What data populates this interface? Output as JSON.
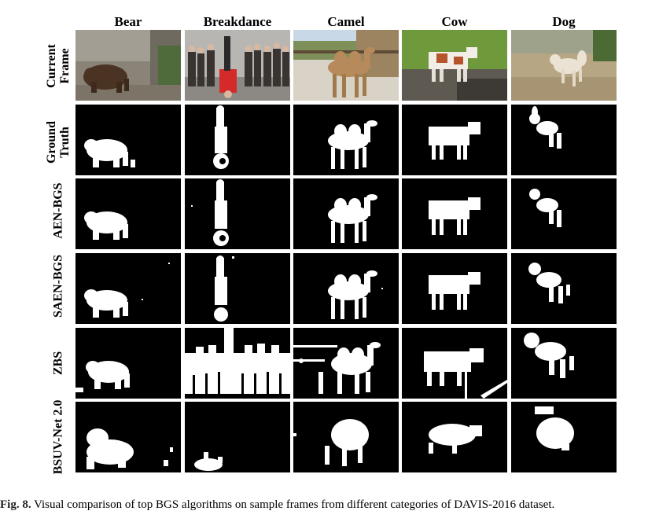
{
  "columns": [
    "Bear",
    "Breakdance",
    "Camel",
    "Cow",
    "Dog"
  ],
  "rows": [
    {
      "lines": [
        "Current",
        "Frame"
      ]
    },
    {
      "lines": [
        "Ground",
        "Truth"
      ]
    },
    {
      "lines": [
        "AEN-BGS"
      ]
    },
    {
      "lines": [
        "SAEN-BGS"
      ]
    },
    {
      "lines": [
        "ZBS"
      ]
    },
    {
      "lines": [
        "BSUV-Net 2.0"
      ]
    }
  ],
  "caption": {
    "label": "Fig. 8.",
    "text": "Visual comparison of top BGS algorithms on sample frames from different categories of DAVIS-2016 dataset."
  },
  "colors": {
    "mask_background": "#000000",
    "mask_foreground": "#ffffff"
  }
}
